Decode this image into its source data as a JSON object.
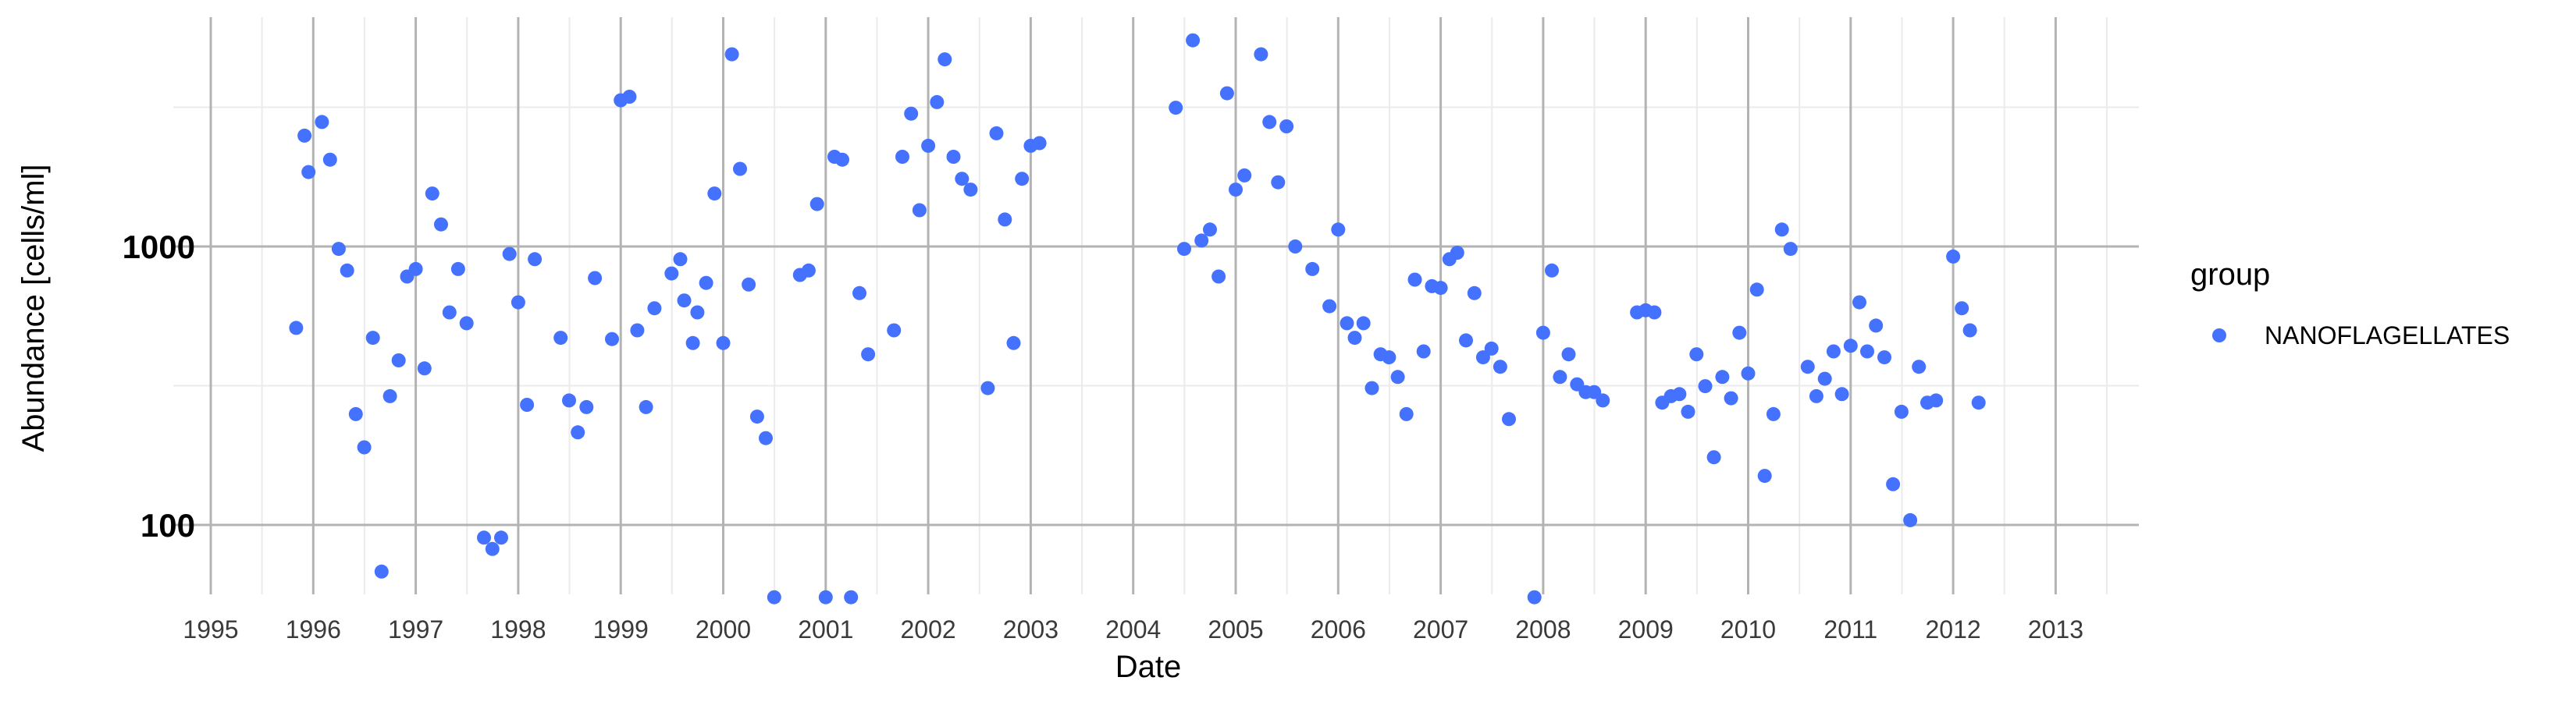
{
  "chart_data": {
    "type": "scatter",
    "xlabel": "Date",
    "ylabel": "Abundance [cells/ml]",
    "x_scale": "date",
    "y_scale": "log10",
    "xlim": [
      "1994-12-01",
      "2013-09-30"
    ],
    "ylim": [
      60,
      6000
    ],
    "x_ticks": [
      "1995",
      "1996",
      "1997",
      "1998",
      "1999",
      "2000",
      "2001",
      "2002",
      "2003",
      "2004",
      "2005",
      "2006",
      "2007",
      "2008",
      "2009",
      "2010",
      "2011",
      "2012",
      "2013"
    ],
    "y_ticks": [
      100,
      1000
    ],
    "y_tick_labels": [
      "100",
      "1000"
    ],
    "grid": true,
    "legend": {
      "title": "group",
      "position": "right"
    },
    "series": [
      {
        "name": "NANOFLAGELLATES",
        "color": "#4472ff",
        "points": [
          [
            "1995-11-01",
            510
          ],
          [
            "1995-12-01",
            2500
          ],
          [
            "1995-12-15",
            1850
          ],
          [
            "1996-02-01",
            2800
          ],
          [
            "1996-03-01",
            2050
          ],
          [
            "1996-04-01",
            980
          ],
          [
            "1996-05-01",
            820
          ],
          [
            "1996-06-01",
            250
          ],
          [
            "1996-07-01",
            190
          ],
          [
            "1996-08-01",
            470
          ],
          [
            "1996-09-01",
            68
          ],
          [
            "1996-10-01",
            290
          ],
          [
            "1996-11-01",
            390
          ],
          [
            "1996-12-01",
            780
          ],
          [
            "1997-01-01",
            830
          ],
          [
            "1997-02-01",
            365
          ],
          [
            "1997-03-01",
            1550
          ],
          [
            "1997-04-01",
            1200
          ],
          [
            "1997-05-01",
            580
          ],
          [
            "1997-06-01",
            830
          ],
          [
            "1997-07-01",
            530
          ],
          [
            "1997-09-01",
            90
          ],
          [
            "1997-10-01",
            82
          ],
          [
            "1997-11-01",
            90
          ],
          [
            "1997-12-01",
            940
          ],
          [
            "1998-01-01",
            630
          ],
          [
            "1998-02-01",
            270
          ],
          [
            "1998-03-01",
            900
          ],
          [
            "1998-06-01",
            470
          ],
          [
            "1998-07-01",
            280
          ],
          [
            "1998-08-01",
            215
          ],
          [
            "1998-09-01",
            265
          ],
          [
            "1998-10-01",
            770
          ],
          [
            "1998-12-01",
            465
          ],
          [
            "1999-01-01",
            3350
          ],
          [
            "1999-02-01",
            3450
          ],
          [
            "1999-03-01",
            500
          ],
          [
            "1999-04-01",
            265
          ],
          [
            "1999-05-01",
            600
          ],
          [
            "1999-07-01",
            800
          ],
          [
            "1999-08-01",
            900
          ],
          [
            "1999-08-15",
            640
          ],
          [
            "1999-09-15",
            450
          ],
          [
            "1999-10-01",
            580
          ],
          [
            "1999-11-01",
            740
          ],
          [
            "1999-12-01",
            1550
          ],
          [
            "2000-01-01",
            450
          ],
          [
            "2000-02-01",
            4900
          ],
          [
            "2000-03-01",
            1900
          ],
          [
            "2000-04-01",
            730
          ],
          [
            "2000-05-01",
            245
          ],
          [
            "2000-06-01",
            205
          ],
          [
            "2000-07-01",
            55
          ],
          [
            "2000-10-01",
            790
          ],
          [
            "2000-11-01",
            820
          ],
          [
            "2000-12-01",
            1420
          ],
          [
            "2001-01-01",
            55
          ],
          [
            "2001-02-01",
            2100
          ],
          [
            "2001-03-01",
            2050
          ],
          [
            "2001-04-01",
            55
          ],
          [
            "2001-05-01",
            680
          ],
          [
            "2001-06-01",
            410
          ],
          [
            "2001-09-01",
            500
          ],
          [
            "2001-10-01",
            2100
          ],
          [
            "2001-11-01",
            3000
          ],
          [
            "2001-12-01",
            1350
          ],
          [
            "2002-01-01",
            2300
          ],
          [
            "2002-02-01",
            3300
          ],
          [
            "2002-03-01",
            4700
          ],
          [
            "2002-04-01",
            2100
          ],
          [
            "2002-05-01",
            1750
          ],
          [
            "2002-06-01",
            1600
          ],
          [
            "2002-08-01",
            310
          ],
          [
            "2002-09-01",
            2550
          ],
          [
            "2002-10-01",
            1250
          ],
          [
            "2002-11-01",
            450
          ],
          [
            "2002-12-01",
            1750
          ],
          [
            "2003-01-01",
            2300
          ],
          [
            "2003-02-01",
            2350
          ],
          [
            "2004-06-01",
            3150
          ],
          [
            "2004-07-01",
            980
          ],
          [
            "2004-08-01",
            5500
          ],
          [
            "2004-09-01",
            1050
          ],
          [
            "2004-10-01",
            1150
          ],
          [
            "2004-11-01",
            780
          ],
          [
            "2004-12-01",
            3550
          ],
          [
            "2005-01-01",
            1600
          ],
          [
            "2005-02-01",
            1800
          ],
          [
            "2005-04-01",
            4900
          ],
          [
            "2005-05-01",
            2800
          ],
          [
            "2005-06-01",
            1700
          ],
          [
            "2005-07-01",
            2700
          ],
          [
            "2005-08-01",
            1000
          ],
          [
            "2005-10-01",
            830
          ],
          [
            "2005-12-01",
            610
          ],
          [
            "2006-01-01",
            1150
          ],
          [
            "2006-02-01",
            530
          ],
          [
            "2006-03-01",
            470
          ],
          [
            "2006-04-01",
            530
          ],
          [
            "2006-05-01",
            310
          ],
          [
            "2006-06-01",
            410
          ],
          [
            "2006-07-01",
            400
          ],
          [
            "2006-08-01",
            340
          ],
          [
            "2006-09-01",
            250
          ],
          [
            "2006-10-01",
            760
          ],
          [
            "2006-11-01",
            420
          ],
          [
            "2006-12-01",
            720
          ],
          [
            "2007-01-01",
            710
          ],
          [
            "2007-02-01",
            900
          ],
          [
            "2007-03-01",
            950
          ],
          [
            "2007-04-01",
            460
          ],
          [
            "2007-05-01",
            680
          ],
          [
            "2007-06-01",
            400
          ],
          [
            "2007-07-01",
            430
          ],
          [
            "2007-08-01",
            370
          ],
          [
            "2007-09-01",
            240
          ],
          [
            "2007-12-01",
            55
          ],
          [
            "2008-01-01",
            490
          ],
          [
            "2008-02-01",
            820
          ],
          [
            "2008-03-01",
            340
          ],
          [
            "2008-04-01",
            410
          ],
          [
            "2008-05-01",
            320
          ],
          [
            "2008-06-01",
            300
          ],
          [
            "2008-07-01",
            300
          ],
          [
            "2008-08-01",
            280
          ],
          [
            "2008-12-01",
            580
          ],
          [
            "2009-01-01",
            590
          ],
          [
            "2009-02-01",
            580
          ],
          [
            "2009-03-01",
            275
          ],
          [
            "2009-04-01",
            290
          ],
          [
            "2009-05-01",
            295
          ],
          [
            "2009-06-01",
            255
          ],
          [
            "2009-07-01",
            410
          ],
          [
            "2009-08-01",
            315
          ],
          [
            "2009-09-01",
            175
          ],
          [
            "2009-10-01",
            340
          ],
          [
            "2009-11-01",
            285
          ],
          [
            "2009-12-01",
            490
          ],
          [
            "2010-01-01",
            350
          ],
          [
            "2010-02-01",
            700
          ],
          [
            "2010-03-01",
            150
          ],
          [
            "2010-04-01",
            250
          ],
          [
            "2010-05-01",
            1150
          ],
          [
            "2010-06-01",
            980
          ],
          [
            "2010-08-01",
            370
          ],
          [
            "2010-09-01",
            290
          ],
          [
            "2010-10-01",
            335
          ],
          [
            "2010-11-01",
            420
          ],
          [
            "2010-12-01",
            295
          ],
          [
            "2011-01-01",
            440
          ],
          [
            "2011-02-01",
            630
          ],
          [
            "2011-03-01",
            420
          ],
          [
            "2011-04-01",
            520
          ],
          [
            "2011-05-01",
            400
          ],
          [
            "2011-06-01",
            140
          ],
          [
            "2011-07-01",
            255
          ],
          [
            "2011-08-01",
            104
          ],
          [
            "2011-09-01",
            370
          ],
          [
            "2011-10-01",
            275
          ],
          [
            "2011-11-01",
            280
          ],
          [
            "2012-01-01",
            920
          ],
          [
            "2012-02-01",
            600
          ],
          [
            "2012-03-01",
            500
          ],
          [
            "2012-04-01",
            275
          ]
        ]
      }
    ]
  }
}
